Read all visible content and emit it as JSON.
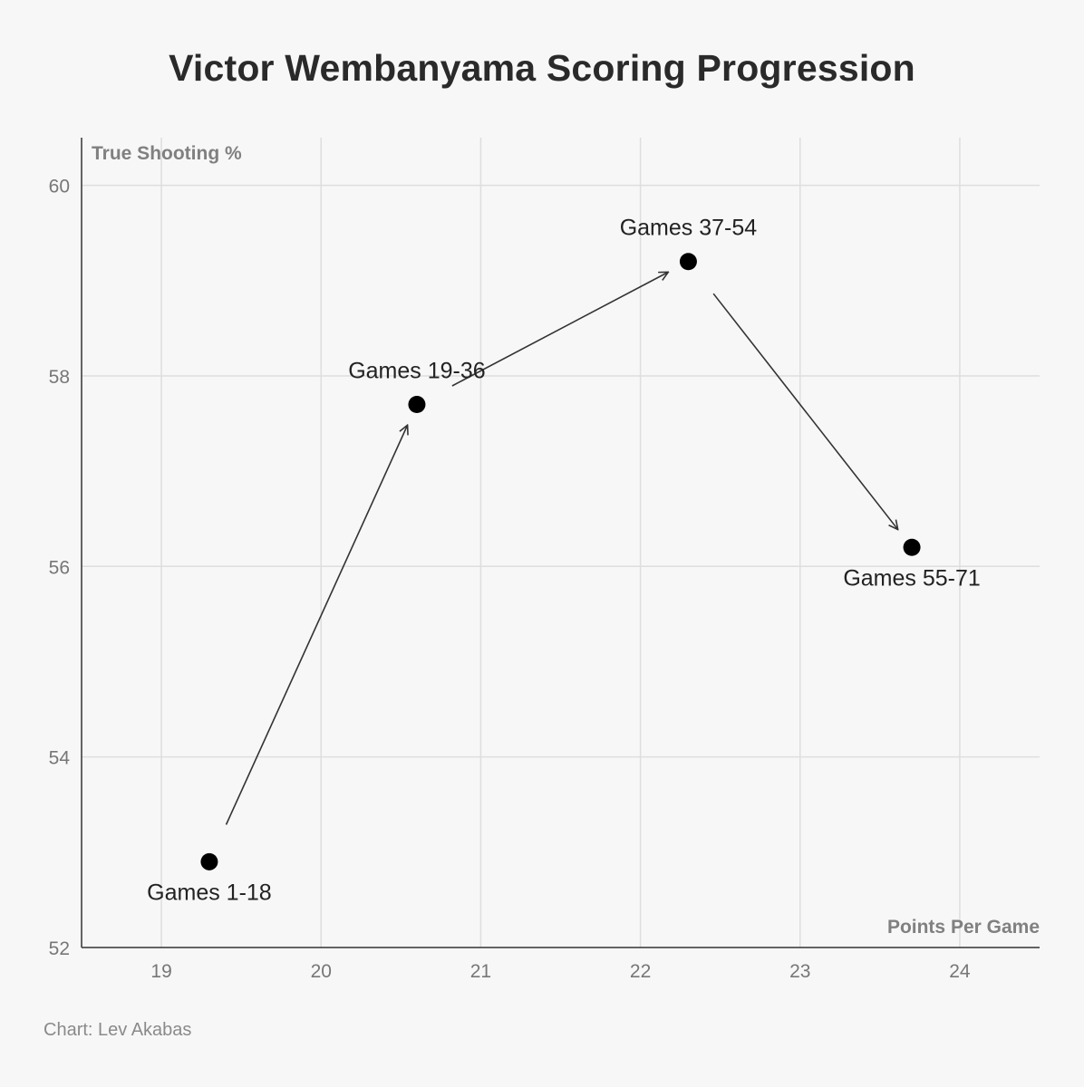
{
  "title": "Victor Wembanyama Scoring Progression",
  "source": "Chart: Lev Akabas",
  "chart_data": {
    "type": "scatter",
    "title": "Victor Wembanyama Scoring Progression",
    "xlabel": "Points Per Game",
    "ylabel": "True Shooting %",
    "xlim": [
      18.5,
      24.5
    ],
    "ylim": [
      52,
      60.5
    ],
    "x_ticks": [
      19,
      20,
      21,
      22,
      23,
      24
    ],
    "y_ticks": [
      52,
      54,
      56,
      58,
      60
    ],
    "grid": true,
    "legend": "none",
    "point_color": "#000000",
    "points": [
      {
        "label": "Games 1-18",
        "x": 19.3,
        "y": 52.9,
        "label_position": "below"
      },
      {
        "label": "Games 19-36",
        "x": 20.6,
        "y": 57.7,
        "label_position": "above"
      },
      {
        "label": "Games 37-54",
        "x": 22.3,
        "y": 59.2,
        "label_position": "above"
      },
      {
        "label": "Games 55-71",
        "x": 23.7,
        "y": 56.2,
        "label_position": "below"
      }
    ],
    "arrows": [
      {
        "from": "Games 1-18",
        "to": "Games 19-36"
      },
      {
        "from": "Games 19-36",
        "to": "Games 37-54"
      },
      {
        "from": "Games 37-54",
        "to": "Games 55-71"
      }
    ]
  }
}
